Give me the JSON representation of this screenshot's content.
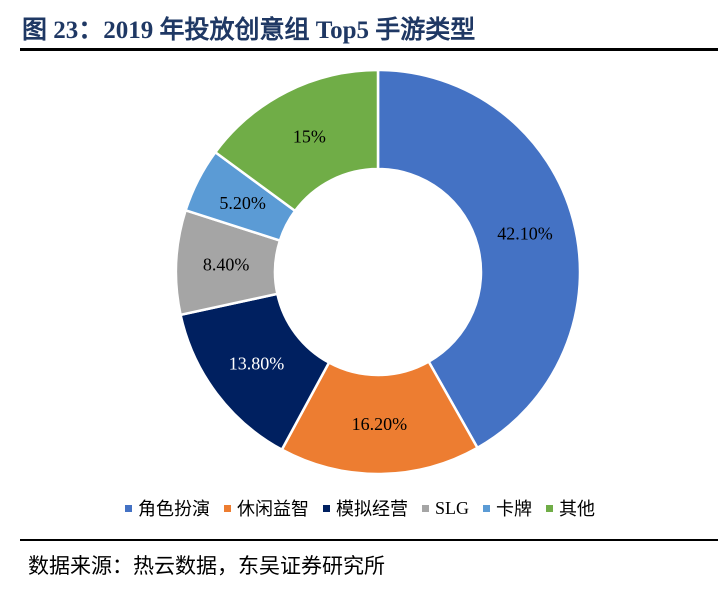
{
  "title": "图 23：2019 年投放创意组 Top5 手游类型",
  "source": "数据来源：热云数据，东吴证券研究所",
  "chart_data": {
    "type": "pie",
    "variant": "donut",
    "categories": [
      "角色扮演",
      "休闲益智",
      "模拟经营",
      "SLG",
      "卡牌",
      "其他"
    ],
    "values": [
      42.1,
      16.2,
      13.8,
      8.4,
      5.2,
      15
    ],
    "labels": [
      "42.10%",
      "16.20%",
      "13.80%",
      "8.40%",
      "5.20%",
      "15%"
    ],
    "colors": [
      "#4472c4",
      "#ed7d31",
      "#002060",
      "#a5a5a5",
      "#5b9bd5",
      "#70ad47"
    ],
    "label_colors": [
      "#000000",
      "#000000",
      "#ffffff",
      "#000000",
      "#000000",
      "#000000"
    ],
    "start": "12 o'clock, clockwise",
    "legend_position": "bottom"
  }
}
